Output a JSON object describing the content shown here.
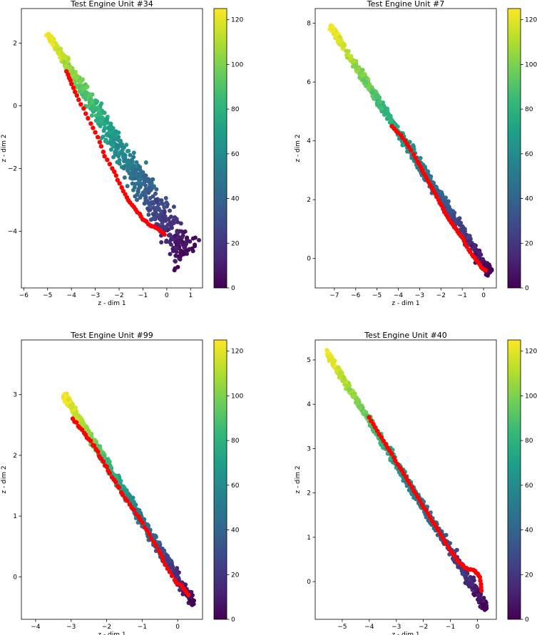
{
  "chart_data": [
    {
      "type": "scatter",
      "title": "Test Engine Unit #34",
      "xlabel": "z - dim 1",
      "ylabel": "z - dim 2",
      "xlim": [
        -6.1,
        1.5
      ],
      "ylim": [
        -5.8,
        3.1
      ],
      "xticks": [
        -6,
        -5,
        -4,
        -3,
        -2,
        -1,
        0,
        1
      ],
      "yticks": [
        -4,
        -2,
        0,
        2
      ],
      "colorbar": {
        "min": 0,
        "max": 125,
        "ticks": [
          0,
          20,
          40,
          60,
          80,
          100,
          120
        ],
        "colormap": "viridis"
      },
      "training_cloud": {
        "x_start": -5.0,
        "y_start": 2.3,
        "x_end": 0.9,
        "y_end": -4.8,
        "halfwidth_start": 0.12,
        "halfwidth_end": 1.05,
        "rul_start": 125,
        "rul_end": 0
      },
      "test_trajectory": {
        "color": "#ff0000",
        "x": [
          -4.2,
          -4.0,
          -3.7,
          -3.3,
          -2.9,
          -2.6,
          -2.2,
          -1.9,
          -1.6,
          -1.3,
          -1.0,
          -0.7,
          -0.4,
          -0.1
        ],
        "y": [
          1.1,
          0.7,
          0.2,
          -0.4,
          -1.0,
          -1.6,
          -2.1,
          -2.6,
          -3.0,
          -3.3,
          -3.6,
          -3.8,
          -3.9,
          -4.1
        ]
      }
    },
    {
      "type": "scatter",
      "title": "Test Engine Unit #7",
      "xlabel": "z - dim 1",
      "ylabel": "z - dim 2",
      "xlim": [
        -7.9,
        0.6
      ],
      "ylim": [
        -1.0,
        8.5
      ],
      "xticks": [
        -7,
        -6,
        -5,
        -4,
        -3,
        -2,
        -1,
        0
      ],
      "yticks": [
        0,
        2,
        4,
        6,
        8
      ],
      "colorbar": {
        "min": 0,
        "max": 125,
        "ticks": [
          0,
          20,
          40,
          60,
          80,
          100,
          120
        ],
        "colormap": "viridis"
      },
      "training_cloud": {
        "x_start": -7.2,
        "y_start": 7.9,
        "x_end": 0.3,
        "y_end": -0.5,
        "halfwidth_start": 0.18,
        "halfwidth_end": 0.32,
        "rul_start": 125,
        "rul_end": 0
      },
      "test_trajectory": {
        "color": "#ff0000",
        "x": [
          -4.3,
          -3.9,
          -3.5,
          -3.1,
          -2.8,
          -2.5,
          -2.2,
          -1.9,
          -1.6,
          -1.3,
          -1.0,
          -0.7,
          -0.4,
          -0.1,
          0.1
        ],
        "y": [
          4.5,
          4.2,
          3.8,
          3.3,
          2.9,
          2.5,
          2.1,
          1.7,
          1.3,
          1.0,
          0.7,
          0.3,
          0.0,
          -0.3,
          -0.4
        ]
      }
    },
    {
      "type": "scatter",
      "title": "Test Engine Unit #99",
      "xlabel": "z - dim 1",
      "ylabel": "z - dim 2",
      "xlim": [
        -4.4,
        0.7
      ],
      "ylim": [
        -0.7,
        3.9
      ],
      "xticks": [
        -4,
        -3,
        -2,
        -1,
        0
      ],
      "yticks": [
        0,
        1,
        2,
        3
      ],
      "colorbar": {
        "min": 0,
        "max": 125,
        "ticks": [
          0,
          20,
          40,
          60,
          80,
          100,
          120
        ],
        "colormap": "viridis"
      },
      "training_cloud": {
        "x_start": -3.2,
        "y_start": 3.0,
        "x_end": 0.45,
        "y_end": -0.45,
        "halfwidth_start": 0.1,
        "halfwidth_end": 0.16,
        "rul_start": 125,
        "rul_end": 0
      },
      "test_trajectory": {
        "color": "#ff0000",
        "x": [
          -2.95,
          -2.75,
          -2.55,
          -2.35,
          -2.15,
          -1.95,
          -1.75,
          -1.55,
          -1.3,
          -1.05,
          -0.8,
          -0.55,
          -0.35,
          -0.1,
          0.1,
          0.3
        ],
        "y": [
          2.6,
          2.45,
          2.3,
          2.15,
          1.95,
          1.75,
          1.55,
          1.35,
          1.15,
          0.95,
          0.7,
          0.45,
          0.2,
          -0.05,
          -0.15,
          -0.3
        ]
      }
    },
    {
      "type": "scatter",
      "title": "Test Engine Unit #40",
      "xlabel": "z - dim 1",
      "ylabel": "z - dim 2",
      "xlim": [
        -6.0,
        0.7
      ],
      "ylim": [
        -0.85,
        5.45
      ],
      "xticks": [
        -5,
        -4,
        -3,
        -2,
        -1,
        0
      ],
      "yticks": [
        0,
        1,
        2,
        3,
        4,
        5
      ],
      "colorbar": {
        "min": 0,
        "max": 125,
        "ticks": [
          0,
          20,
          40,
          60,
          80,
          100,
          120
        ],
        "colormap": "viridis"
      },
      "training_cloud": {
        "x_start": -5.6,
        "y_start": 5.2,
        "x_end": 0.35,
        "y_end": -0.6,
        "halfwidth_start": 0.12,
        "halfwidth_end": 0.22,
        "rul_start": 125,
        "rul_end": 0
      },
      "test_trajectory": {
        "color": "#ff0000",
        "x": [
          -4.0,
          -3.7,
          -3.4,
          -3.1,
          -2.8,
          -2.5,
          -2.2,
          -1.9,
          -1.6,
          -1.3,
          -1.0,
          -0.7,
          -0.4,
          -0.1,
          0.1,
          0.15
        ],
        "y": [
          3.7,
          3.4,
          3.1,
          2.8,
          2.5,
          2.2,
          1.9,
          1.6,
          1.3,
          1.0,
          0.7,
          0.45,
          0.3,
          0.25,
          0.1,
          -0.2
        ]
      }
    }
  ]
}
